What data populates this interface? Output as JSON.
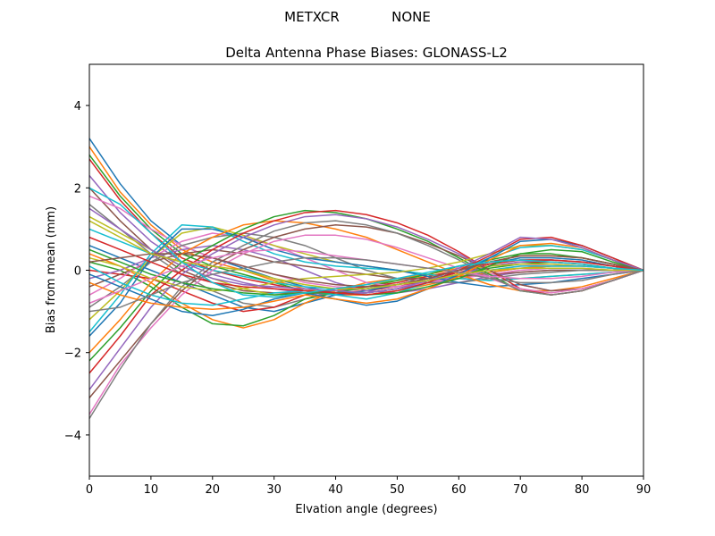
{
  "figure": {
    "suptitle_left": "METXCR",
    "suptitle_right": "NONE"
  },
  "chart_data": {
    "type": "line",
    "title": "Delta Antenna Phase Biases: GLONASS-L2",
    "xlabel": "Elvation angle (degrees)",
    "ylabel": "Bias from mean (mm)",
    "xlim": [
      0,
      90
    ],
    "ylim": [
      -5,
      5
    ],
    "xticks": [
      0,
      10,
      20,
      30,
      40,
      50,
      60,
      70,
      80,
      90
    ],
    "yticks": [
      -4,
      -2,
      0,
      2,
      4
    ],
    "grid": false,
    "x": [
      0,
      5,
      10,
      15,
      20,
      25,
      30,
      35,
      40,
      45,
      50,
      55,
      60,
      65,
      70,
      75,
      80,
      85,
      90
    ],
    "colors": [
      "#1f77b4",
      "#ff7f0e",
      "#2ca02c",
      "#d62728",
      "#9467bd",
      "#8c564b",
      "#e377c2",
      "#7f7f7f",
      "#bcbd22",
      "#17becf"
    ],
    "series": [
      {
        "values": [
          3.2,
          2.1,
          1.2,
          0.6,
          0.3,
          0.05,
          -0.2,
          -0.4,
          -0.55,
          -0.55,
          -0.45,
          -0.3,
          -0.15,
          -0.05,
          0.05,
          0.1,
          0.1,
          0.05,
          0
        ]
      },
      {
        "values": [
          3.0,
          1.9,
          1.1,
          0.5,
          0.2,
          0.0,
          -0.25,
          -0.45,
          -0.6,
          -0.6,
          -0.5,
          -0.35,
          -0.2,
          -0.05,
          0.05,
          0.1,
          0.1,
          0.05,
          0
        ]
      },
      {
        "values": [
          2.8,
          1.8,
          1.0,
          0.4,
          0.1,
          -0.1,
          -0.3,
          -0.5,
          -0.6,
          -0.55,
          -0.45,
          -0.3,
          -0.1,
          0.05,
          0.15,
          0.2,
          0.15,
          0.05,
          0
        ]
      },
      {
        "values": [
          2.7,
          1.7,
          0.9,
          0.3,
          0.0,
          -0.2,
          -0.35,
          -0.5,
          -0.55,
          -0.5,
          -0.4,
          -0.25,
          -0.05,
          0.1,
          0.2,
          0.2,
          0.15,
          0.05,
          0
        ]
      },
      {
        "values": [
          2.3,
          1.4,
          0.7,
          0.2,
          -0.1,
          -0.3,
          -0.45,
          -0.55,
          -0.6,
          -0.55,
          -0.45,
          -0.3,
          -0.1,
          0.1,
          0.2,
          0.25,
          0.2,
          0.1,
          0
        ]
      },
      {
        "values": [
          2.0,
          1.2,
          0.5,
          0.0,
          -0.3,
          -0.5,
          -0.55,
          -0.55,
          -0.5,
          -0.45,
          -0.35,
          -0.2,
          0.0,
          0.15,
          0.25,
          0.25,
          0.2,
          0.1,
          0
        ]
      },
      {
        "values": [
          1.8,
          1.5,
          1.0,
          0.6,
          0.3,
          0.1,
          -0.1,
          -0.3,
          -0.4,
          -0.45,
          -0.4,
          -0.3,
          -0.15,
          0.0,
          0.1,
          0.15,
          0.1,
          0.05,
          0
        ]
      },
      {
        "values": [
          1.6,
          1.0,
          0.4,
          -0.1,
          -0.5,
          -0.8,
          -0.9,
          -0.7,
          -0.5,
          -0.45,
          -0.35,
          -0.2,
          0.0,
          0.2,
          0.35,
          0.35,
          0.3,
          0.15,
          0
        ]
      },
      {
        "values": [
          1.3,
          0.9,
          0.5,
          0.1,
          -0.2,
          -0.45,
          -0.6,
          -0.55,
          -0.45,
          -0.35,
          -0.25,
          -0.15,
          0.0,
          0.1,
          0.15,
          0.15,
          0.1,
          0.05,
          0
        ]
      },
      {
        "values": [
          1.0,
          0.7,
          0.4,
          0.2,
          0.0,
          -0.15,
          -0.3,
          -0.4,
          -0.45,
          -0.45,
          -0.35,
          -0.25,
          -0.1,
          0.0,
          0.1,
          0.1,
          0.1,
          0.05,
          0
        ]
      },
      {
        "values": [
          0.6,
          0.3,
          0.0,
          -0.3,
          -0.6,
          -0.9,
          -1.0,
          -0.8,
          -0.6,
          -0.5,
          -0.35,
          -0.2,
          0.0,
          0.15,
          0.3,
          0.3,
          0.25,
          0.1,
          0
        ]
      },
      {
        "values": [
          0.4,
          0.1,
          -0.3,
          -0.8,
          -1.2,
          -1.4,
          -1.2,
          -0.8,
          -0.5,
          -0.3,
          -0.2,
          -0.1,
          0.05,
          0.2,
          0.35,
          0.35,
          0.3,
          0.15,
          0
        ]
      },
      {
        "values": [
          0.2,
          0.0,
          -0.4,
          -0.9,
          -1.3,
          -1.35,
          -1.1,
          -0.7,
          -0.55,
          -0.4,
          -0.25,
          -0.1,
          0.1,
          0.25,
          0.4,
          0.4,
          0.3,
          0.15,
          0
        ]
      },
      {
        "values": [
          0.0,
          -0.1,
          -0.2,
          -0.5,
          -0.8,
          -1.0,
          -0.9,
          -0.6,
          -0.45,
          -0.4,
          -0.3,
          -0.15,
          0.0,
          0.15,
          0.25,
          0.25,
          0.2,
          0.1,
          0
        ]
      },
      {
        "values": [
          -0.2,
          0.0,
          0.3,
          0.5,
          0.6,
          0.5,
          0.3,
          0.0,
          -0.3,
          -0.5,
          -0.55,
          -0.45,
          -0.3,
          -0.15,
          -0.05,
          0.0,
          0.0,
          0.0,
          0
        ]
      },
      {
        "values": [
          -0.4,
          -0.1,
          0.2,
          0.4,
          0.5,
          0.4,
          0.2,
          0.1,
          0.0,
          -0.1,
          -0.2,
          -0.2,
          -0.15,
          -0.1,
          -0.05,
          0.0,
          0.0,
          0.0,
          0
        ]
      },
      {
        "values": [
          -0.6,
          -0.2,
          0.3,
          0.7,
          0.9,
          0.8,
          0.6,
          0.3,
          0.0,
          -0.3,
          -0.4,
          -0.3,
          -0.2,
          -0.1,
          0.0,
          0.05,
          0.05,
          0.0,
          0
        ]
      },
      {
        "values": [
          -0.9,
          -0.4,
          0.2,
          0.6,
          0.8,
          0.9,
          0.8,
          0.6,
          0.3,
          0.0,
          -0.2,
          -0.3,
          -0.3,
          -0.2,
          -0.1,
          -0.05,
          0.0,
          0.0,
          0
        ]
      },
      {
        "values": [
          -1.2,
          -0.5,
          0.3,
          0.9,
          1.05,
          0.85,
          0.6,
          0.4,
          0.2,
          0.1,
          0.0,
          -0.1,
          -0.2,
          -0.25,
          -0.2,
          -0.15,
          -0.1,
          -0.05,
          0
        ]
      },
      {
        "values": [
          -1.5,
          -0.6,
          0.4,
          1.1,
          1.05,
          0.7,
          0.4,
          0.2,
          0.1,
          0.05,
          0.0,
          -0.1,
          -0.2,
          -0.25,
          -0.2,
          -0.15,
          -0.1,
          -0.05,
          0
        ]
      },
      {
        "values": [
          -1.6,
          -0.8,
          0.3,
          1.0,
          1.0,
          0.8,
          0.5,
          0.3,
          0.2,
          0.1,
          0.0,
          -0.15,
          -0.3,
          -0.4,
          -0.35,
          -0.3,
          -0.2,
          -0.1,
          0
        ]
      },
      {
        "values": [
          -2.0,
          -1.2,
          -0.3,
          0.4,
          0.8,
          1.1,
          1.2,
          1.15,
          1.0,
          0.8,
          0.5,
          0.2,
          -0.1,
          -0.35,
          -0.5,
          -0.5,
          -0.4,
          -0.2,
          0
        ]
      },
      {
        "values": [
          -2.2,
          -1.4,
          -0.5,
          0.2,
          0.6,
          1.0,
          1.3,
          1.45,
          1.4,
          1.25,
          1.0,
          0.7,
          0.3,
          -0.1,
          -0.5,
          -0.6,
          -0.5,
          -0.25,
          0
        ]
      },
      {
        "values": [
          -2.5,
          -1.6,
          -0.6,
          0.0,
          0.5,
          0.9,
          1.2,
          1.4,
          1.45,
          1.35,
          1.15,
          0.85,
          0.45,
          0.0,
          -0.45,
          -0.6,
          -0.5,
          -0.25,
          0
        ]
      },
      {
        "values": [
          -2.9,
          -1.9,
          -0.9,
          -0.1,
          0.4,
          0.8,
          1.1,
          1.3,
          1.35,
          1.25,
          1.05,
          0.75,
          0.4,
          0.0,
          -0.35,
          -0.5,
          -0.45,
          -0.25,
          0
        ]
      },
      {
        "values": [
          -3.1,
          -2.2,
          -1.3,
          -0.5,
          0.1,
          0.5,
          0.8,
          1.0,
          1.1,
          1.05,
          0.9,
          0.65,
          0.35,
          0.0,
          -0.35,
          -0.5,
          -0.45,
          -0.25,
          0
        ]
      },
      {
        "values": [
          -3.5,
          -2.3,
          -1.4,
          -0.6,
          0.0,
          0.4,
          0.7,
          0.85,
          0.85,
          0.75,
          0.55,
          0.3,
          0.05,
          -0.2,
          -0.45,
          -0.55,
          -0.45,
          -0.25,
          0
        ]
      },
      {
        "values": [
          -3.6,
          -2.4,
          -1.3,
          -0.4,
          0.2,
          0.6,
          0.95,
          1.15,
          1.2,
          1.1,
          0.9,
          0.6,
          0.25,
          -0.15,
          -0.5,
          -0.6,
          -0.5,
          -0.25,
          0
        ]
      },
      {
        "values": [
          0.3,
          0.1,
          -0.2,
          -0.4,
          -0.5,
          -0.45,
          -0.3,
          -0.2,
          -0.15,
          -0.1,
          -0.05,
          0.05,
          0.2,
          0.4,
          0.6,
          0.6,
          0.5,
          0.25,
          0
        ]
      },
      {
        "values": [
          0.1,
          -0.3,
          -0.6,
          -0.8,
          -0.85,
          -0.7,
          -0.55,
          -0.5,
          -0.6,
          -0.7,
          -0.55,
          -0.3,
          0.0,
          0.3,
          0.55,
          0.6,
          0.5,
          0.25,
          0
        ]
      },
      {
        "values": [
          -0.1,
          -0.4,
          -0.7,
          -1.0,
          -1.1,
          -0.95,
          -0.7,
          -0.55,
          -0.7,
          -0.85,
          -0.75,
          -0.45,
          -0.1,
          0.3,
          0.7,
          0.75,
          0.6,
          0.3,
          0
        ]
      },
      {
        "values": [
          -0.3,
          -0.6,
          -0.8,
          -0.9,
          -0.95,
          -0.9,
          -0.75,
          -0.6,
          -0.7,
          -0.8,
          -0.7,
          -0.45,
          -0.15,
          0.25,
          0.6,
          0.65,
          0.55,
          0.25,
          0
        ]
      },
      {
        "values": [
          0.5,
          0.2,
          -0.1,
          -0.3,
          -0.45,
          -0.55,
          -0.6,
          -0.55,
          -0.55,
          -0.6,
          -0.55,
          -0.4,
          -0.2,
          0.1,
          0.4,
          0.5,
          0.45,
          0.2,
          0
        ]
      },
      {
        "values": [
          0.8,
          0.5,
          0.2,
          -0.1,
          -0.3,
          -0.4,
          -0.45,
          -0.5,
          -0.55,
          -0.6,
          -0.5,
          -0.3,
          0.0,
          0.35,
          0.75,
          0.8,
          0.6,
          0.3,
          0
        ]
      },
      {
        "values": [
          1.5,
          1.0,
          0.5,
          0.1,
          -0.2,
          -0.35,
          -0.4,
          -0.45,
          -0.5,
          -0.55,
          -0.45,
          -0.25,
          0.05,
          0.4,
          0.8,
          0.75,
          0.55,
          0.25,
          0
        ]
      },
      {
        "values": [
          0.2,
          0.3,
          0.4,
          0.4,
          0.3,
          0.1,
          -0.1,
          -0.25,
          -0.35,
          -0.4,
          -0.35,
          -0.2,
          0.0,
          0.2,
          0.35,
          0.35,
          0.3,
          0.15,
          0
        ]
      },
      {
        "values": [
          -0.8,
          -0.5,
          -0.2,
          0.1,
          0.3,
          0.45,
          0.5,
          0.45,
          0.35,
          0.25,
          0.15,
          0.05,
          -0.05,
          -0.15,
          -0.2,
          -0.2,
          -0.15,
          -0.05,
          0
        ]
      },
      {
        "values": [
          -1.0,
          -0.9,
          -0.6,
          -0.3,
          -0.1,
          0.05,
          0.2,
          0.3,
          0.3,
          0.25,
          0.15,
          0.05,
          -0.05,
          -0.2,
          -0.3,
          -0.3,
          -0.25,
          -0.1,
          0
        ]
      },
      {
        "values": [
          1.2,
          0.8,
          0.4,
          0.2,
          0.1,
          0.0,
          -0.2,
          -0.35,
          -0.45,
          -0.45,
          -0.35,
          -0.25,
          -0.1,
          0.0,
          0.05,
          0.05,
          0.05,
          0.0,
          0
        ]
      },
      {
        "values": [
          2.0,
          1.6,
          0.9,
          0.2,
          -0.3,
          -0.6,
          -0.65,
          -0.55,
          -0.45,
          -0.35,
          -0.2,
          -0.05,
          0.1,
          0.2,
          0.25,
          0.2,
          0.15,
          0.05,
          0
        ]
      }
    ]
  }
}
